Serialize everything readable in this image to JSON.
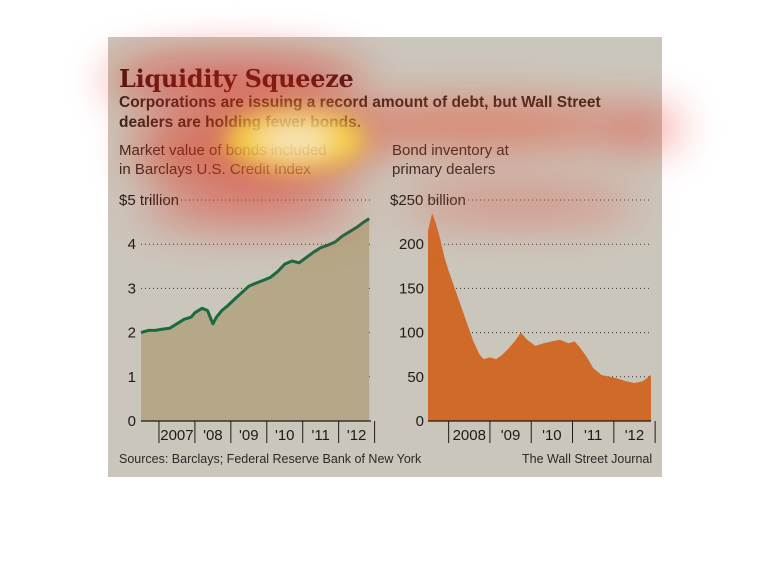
{
  "title": "Liquidity Squeeze",
  "subtitle_line1": "Corporations are issuing a record amount of debt, but Wall Street",
  "subtitle_line2": "dealers are holding fewer bonds.",
  "source": "Sources: Barclays; Federal Reserve Bank of New York",
  "credit": "The Wall Street Journal",
  "colors": {
    "left_line": "#1a6a40",
    "left_fill": "#b4a888",
    "right_fill": "#d06a28",
    "panel_bg": "#cbc6bc"
  },
  "chart_data": [
    {
      "type": "area",
      "header_line1": "Market value of bonds included",
      "header_line2": "in Barclays U.S. Credit Index",
      "unit_label": "$5 trillion",
      "y_ticks": [
        "4",
        "3",
        "2",
        "1",
        "0"
      ],
      "y_tick_values": [
        4,
        3,
        2,
        1,
        0
      ],
      "x_tick_labels": [
        "2007",
        "'08",
        "'09",
        "'10",
        "'11",
        "'12"
      ],
      "ylim": [
        0,
        5
      ],
      "xlim": [
        2006.5,
        2012.9
      ],
      "x": [
        2006.5,
        2006.7,
        2006.9,
        2007.1,
        2007.3,
        2007.5,
        2007.7,
        2007.9,
        2008.0,
        2008.2,
        2008.35,
        2008.5,
        2008.6,
        2008.75,
        2008.9,
        2009.1,
        2009.3,
        2009.5,
        2009.7,
        2009.9,
        2010.1,
        2010.3,
        2010.5,
        2010.7,
        2010.9,
        2011.1,
        2011.3,
        2011.5,
        2011.7,
        2011.9,
        2012.1,
        2012.3,
        2012.5,
        2012.7,
        2012.85
      ],
      "values": [
        2.0,
        2.05,
        2.05,
        2.08,
        2.1,
        2.2,
        2.3,
        2.35,
        2.45,
        2.55,
        2.5,
        2.2,
        2.35,
        2.5,
        2.6,
        2.75,
        2.9,
        3.05,
        3.12,
        3.18,
        3.25,
        3.38,
        3.55,
        3.62,
        3.58,
        3.7,
        3.82,
        3.92,
        3.98,
        4.05,
        4.18,
        4.28,
        4.38,
        4.5,
        4.58
      ]
    },
    {
      "type": "area",
      "header_line1": "Bond inventory at",
      "header_line2": "primary dealers",
      "unit_label": "$250 billion",
      "y_ticks": [
        "200",
        "150",
        "100",
        "50",
        "0"
      ],
      "y_tick_values": [
        200,
        150,
        100,
        50,
        0
      ],
      "x_tick_labels": [
        "2008",
        "'09",
        "'10",
        "'11",
        "'12"
      ],
      "ylim": [
        0,
        250
      ],
      "xlim": [
        2007.5,
        2012.9
      ],
      "x": [
        2007.5,
        2007.6,
        2007.7,
        2007.8,
        2007.9,
        2008.0,
        2008.15,
        2008.3,
        2008.45,
        2008.6,
        2008.75,
        2008.85,
        2009.0,
        2009.15,
        2009.3,
        2009.45,
        2009.6,
        2009.75,
        2009.9,
        2010.1,
        2010.3,
        2010.5,
        2010.7,
        2010.9,
        2011.05,
        2011.2,
        2011.35,
        2011.5,
        2011.7,
        2011.9,
        2012.1,
        2012.3,
        2012.5,
        2012.7,
        2012.9
      ],
      "values": [
        215,
        235,
        222,
        205,
        185,
        170,
        150,
        130,
        110,
        90,
        75,
        70,
        72,
        70,
        75,
        82,
        90,
        100,
        92,
        85,
        88,
        90,
        92,
        88,
        90,
        82,
        72,
        60,
        52,
        50,
        48,
        45,
        43,
        45,
        52
      ]
    }
  ]
}
